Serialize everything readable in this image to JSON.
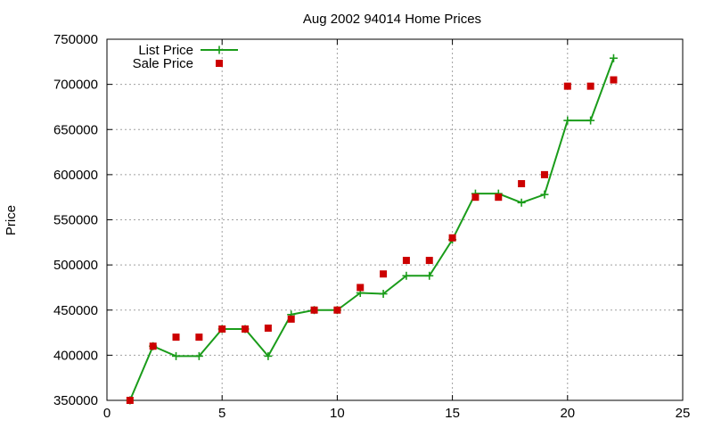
{
  "chart_data": {
    "type": "line",
    "title": "Aug 2002 94014 Home Prices",
    "xlabel": "",
    "ylabel": "Price",
    "xlim": [
      0,
      25
    ],
    "ylim": [
      350000,
      750000
    ],
    "xticks": [
      0,
      5,
      10,
      15,
      20,
      25
    ],
    "yticks": [
      350000,
      400000,
      450000,
      500000,
      550000,
      600000,
      650000,
      700000,
      750000
    ],
    "grid": true,
    "legend_position": "top-left",
    "series": [
      {
        "name": "List Price",
        "style": "line-with-plus-markers",
        "color": "#1a9c1a",
        "x": [
          1,
          2,
          3,
          4,
          5,
          6,
          7,
          8,
          9,
          10,
          11,
          12,
          13,
          14,
          15,
          16,
          17,
          18,
          19,
          20,
          21,
          22
        ],
        "y": [
          350000,
          410000,
          399000,
          399000,
          429000,
          429000,
          399000,
          445000,
          450000,
          450000,
          469000,
          468000,
          488000,
          488000,
          528000,
          579000,
          579000,
          569000,
          578000,
          660000,
          660000,
          729000
        ]
      },
      {
        "name": "Sale Price",
        "style": "square-markers",
        "color": "#cc0000",
        "x": [
          1,
          2,
          3,
          4,
          5,
          6,
          7,
          8,
          9,
          10,
          11,
          12,
          13,
          14,
          15,
          16,
          17,
          18,
          19,
          20,
          21,
          22
        ],
        "y": [
          350000,
          410000,
          420000,
          420000,
          429000,
          429000,
          430000,
          440000,
          450000,
          450000,
          475000,
          490000,
          505000,
          505000,
          530000,
          575000,
          575000,
          590000,
          600000,
          698000,
          698000,
          705000
        ]
      }
    ]
  }
}
